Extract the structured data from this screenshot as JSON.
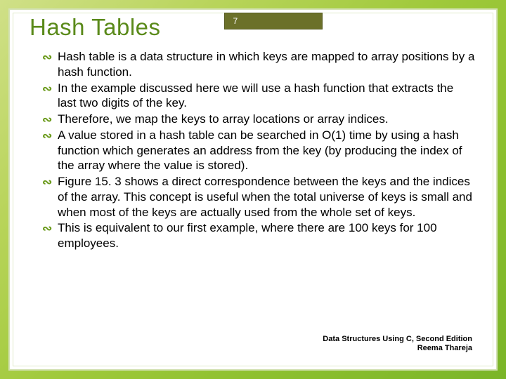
{
  "slide": {
    "title": "Hash Tables",
    "page_number": "7",
    "bullets": [
      "Hash table is a data structure in which keys are mapped to array positions by a hash function.",
      "In the example discussed here we will use a hash function that extracts the last two digits of the key.",
      "Therefore, we map the keys to array locations or array indices.",
      "A value stored in a hash table can be searched in O(1) time by using a hash function which generates an address from the key (by producing the index of the array where the value is stored).",
      "Figure 15. 3 shows a direct correspondence between the keys and the indices of the array. This concept is useful when the total universe of keys is small and when most of the keys are actually used from the whole set of keys.",
      "This is equivalent to our first example, where there are 100 keys for 100 employees."
    ],
    "footer": {
      "line1": "Data Structures Using C, Second Edition",
      "line2": "Reema Thareja"
    }
  },
  "style": {
    "background_gradient_start": "#d0e088",
    "background_gradient_end": "#7ab528",
    "slide_background": "#ffffff",
    "title_color": "#5a8a1a",
    "title_fontsize": 33,
    "badge_background": "#6b7029",
    "badge_text_color": "#ffffff",
    "badge_fontsize": 12,
    "bullet_color": "#6a9a1a",
    "body_text_color": "#000000",
    "body_fontsize": 17,
    "footer_fontsize": 11,
    "inner_border_color": "rgba(130,170,40,0.35)"
  }
}
